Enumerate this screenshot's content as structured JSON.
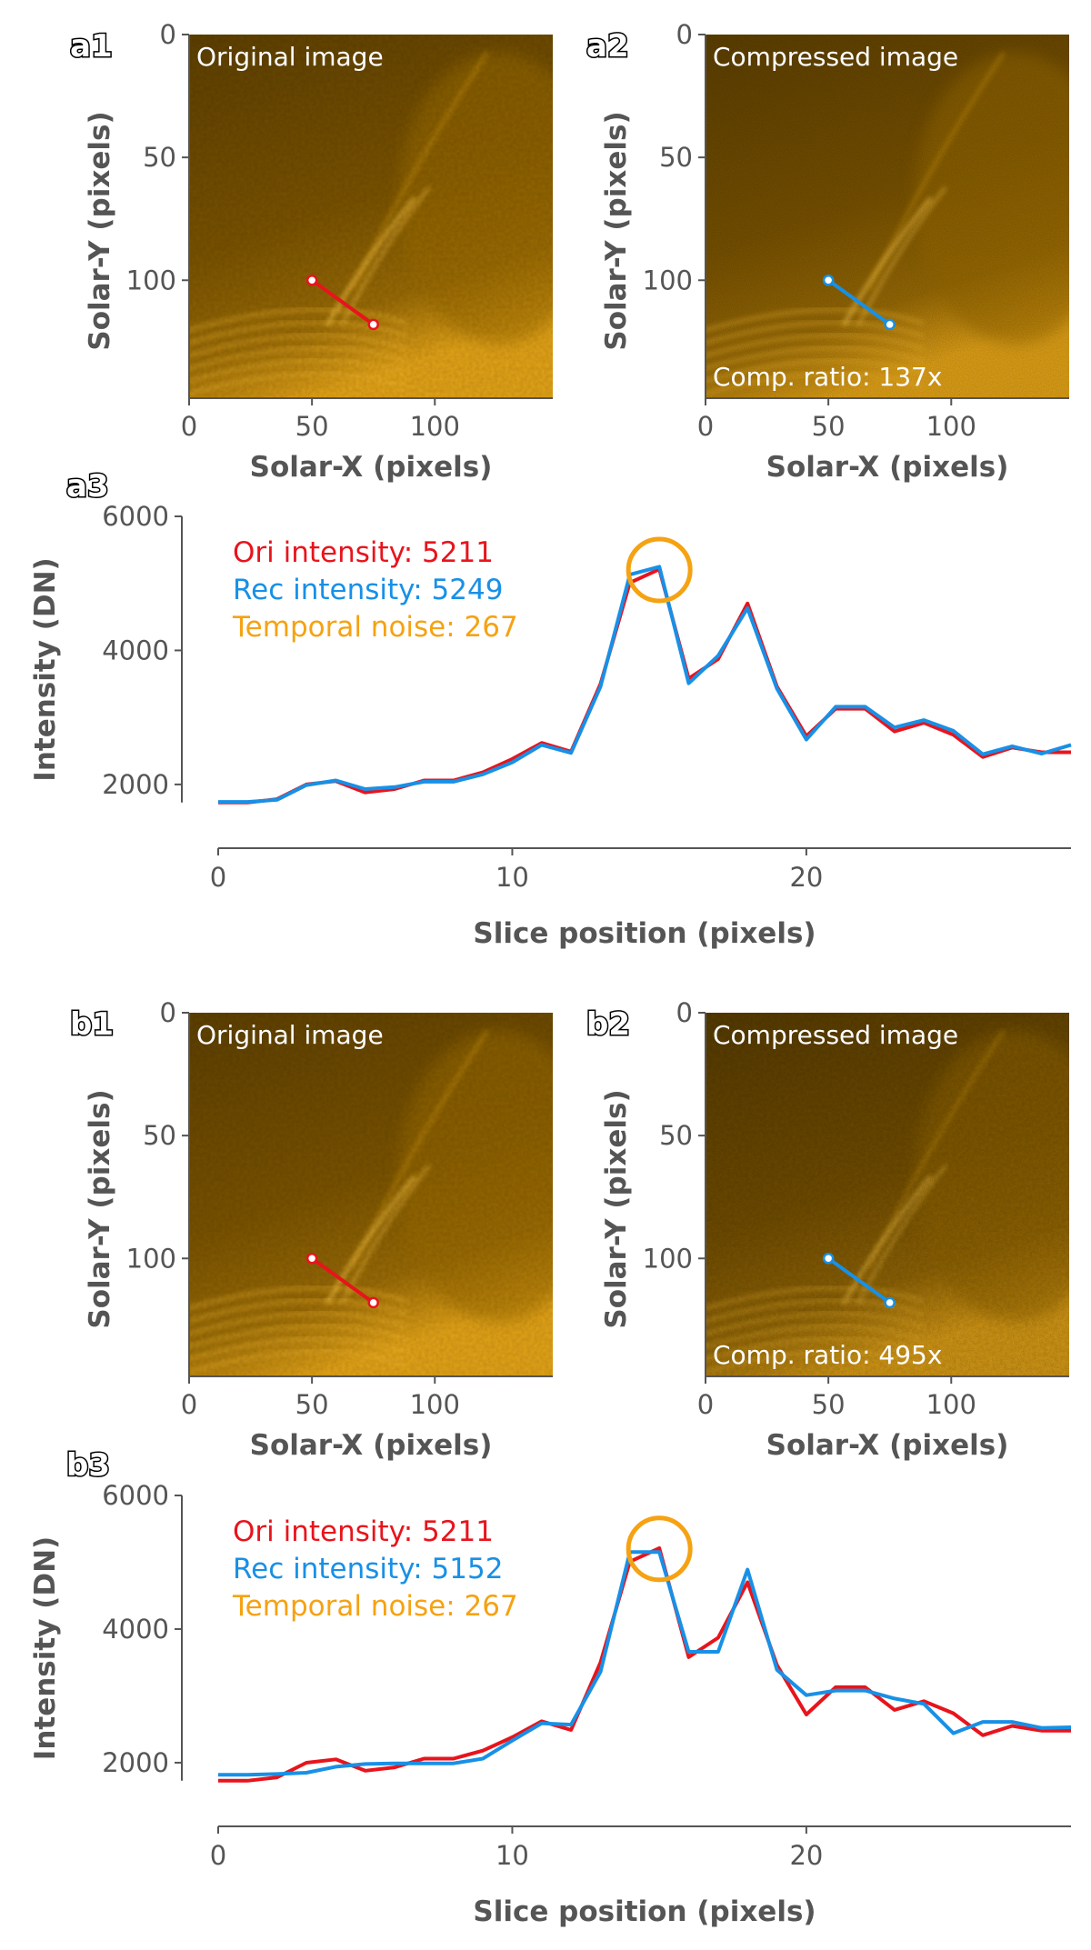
{
  "colors": {
    "original": "#e8141c",
    "reconstructed": "#1890e6",
    "noise": "#f5a213",
    "axis": "#555555",
    "solar_dark": "#5e4000",
    "solar_mid": "#9a6b05",
    "solar_bright": "#e3a317"
  },
  "panels": [
    {
      "row_id": "a",
      "original_image": {
        "tag": "a1",
        "title": "Original image",
        "xlabel": "Solar-X (pixels)",
        "ylabel": "Solar-Y (pixels)",
        "xticks": [
          "0",
          "50",
          "100"
        ],
        "yticks": [
          "0",
          "50",
          "100"
        ],
        "slice_start": [
          50,
          100
        ],
        "slice_end": [
          75,
          118
        ]
      },
      "compressed_image": {
        "tag": "a2",
        "title": "Compressed image",
        "ratio_label": "Comp. ratio: 137x",
        "xlabel": "Solar-X (pixels)",
        "ylabel": "Solar-Y (pixels)",
        "xticks": [
          "0",
          "50",
          "100"
        ],
        "yticks": [
          "0",
          "50",
          "100"
        ],
        "slice_start": [
          50,
          100
        ],
        "slice_end": [
          75,
          118
        ]
      },
      "profile": {
        "tag": "a3",
        "xlabel": "Slice position (pixels)",
        "ylabel": "Intensity (DN)",
        "xticks": [
          "0",
          "10",
          "20"
        ],
        "yticks": [
          "2000",
          "4000",
          "6000"
        ],
        "legend": [
          "Ori intensity: 5211",
          "Rec intensity: 5249",
          "Temporal noise: 267"
        ],
        "highlight": {
          "x": 15,
          "y": 5200
        }
      }
    },
    {
      "row_id": "b",
      "original_image": {
        "tag": "b1",
        "title": "Original image",
        "xlabel": "Solar-X (pixels)",
        "ylabel": "Solar-Y (pixels)",
        "xticks": [
          "0",
          "50",
          "100"
        ],
        "yticks": [
          "0",
          "50",
          "100"
        ],
        "slice_start": [
          50,
          100
        ],
        "slice_end": [
          75,
          118
        ]
      },
      "compressed_image": {
        "tag": "b2",
        "title": "Compressed image",
        "ratio_label": "Comp. ratio: 495x",
        "xlabel": "Solar-X (pixels)",
        "ylabel": "Solar-Y (pixels)",
        "xticks": [
          "0",
          "50",
          "100"
        ],
        "yticks": [
          "0",
          "50",
          "100"
        ],
        "slice_start": [
          50,
          100
        ],
        "slice_end": [
          75,
          118
        ]
      },
      "profile": {
        "tag": "b3",
        "xlabel": "Slice position (pixels)",
        "ylabel": "Intensity (DN)",
        "xticks": [
          "0",
          "10",
          "20"
        ],
        "yticks": [
          "2000",
          "4000",
          "6000"
        ],
        "legend": [
          "Ori intensity: 5211",
          "Rec intensity: 5152",
          "Temporal noise: 267"
        ],
        "highlight": {
          "x": 15,
          "y": 5200
        }
      }
    }
  ],
  "chart_data": [
    {
      "type": "line",
      "title": "a3",
      "xlabel": "Slice position (pixels)",
      "ylabel": "Intensity (DN)",
      "xlim": [
        0,
        29
      ],
      "ylim": [
        1700,
        6000
      ],
      "x": [
        0,
        1,
        2,
        3,
        4,
        5,
        6,
        7,
        8,
        9,
        10,
        11,
        12,
        13,
        14,
        15,
        16,
        17,
        18,
        19,
        20,
        21,
        22,
        23,
        24,
        25,
        26,
        27,
        28,
        29
      ],
      "series": [
        {
          "name": "Ori intensity: 5211",
          "values": [
            1730,
            1730,
            1780,
            2000,
            2050,
            1880,
            1930,
            2060,
            2060,
            2180,
            2380,
            2620,
            2490,
            3500,
            5010,
            5211,
            3580,
            3870,
            4700,
            3460,
            2720,
            3130,
            3130,
            2790,
            2920,
            2740,
            2410,
            2550,
            2480,
            2480
          ]
        },
        {
          "name": "Rec intensity: 5249",
          "values": [
            1740,
            1740,
            1770,
            1990,
            2060,
            1930,
            1960,
            2040,
            2040,
            2150,
            2330,
            2590,
            2470,
            3460,
            5130,
            5249,
            3510,
            3920,
            4630,
            3430,
            2670,
            3160,
            3160,
            2850,
            2960,
            2800,
            2450,
            2570,
            2460,
            2590
          ]
        }
      ]
    },
    {
      "type": "line",
      "title": "b3",
      "xlabel": "Slice position (pixels)",
      "ylabel": "Intensity (DN)",
      "xlim": [
        0,
        29
      ],
      "ylim": [
        1700,
        6000
      ],
      "x": [
        0,
        1,
        2,
        3,
        4,
        5,
        6,
        7,
        8,
        9,
        10,
        11,
        12,
        13,
        14,
        15,
        16,
        17,
        18,
        19,
        20,
        21,
        22,
        23,
        24,
        25,
        26,
        27,
        28,
        29
      ],
      "series": [
        {
          "name": "Ori intensity: 5211",
          "values": [
            1730,
            1730,
            1780,
            2000,
            2050,
            1880,
            1930,
            2060,
            2060,
            2180,
            2380,
            2620,
            2490,
            3500,
            5010,
            5211,
            3580,
            3870,
            4700,
            3460,
            2720,
            3130,
            3130,
            2790,
            2920,
            2740,
            2410,
            2550,
            2480,
            2480
          ]
        },
        {
          "name": "Rec intensity: 5152",
          "values": [
            1820,
            1820,
            1830,
            1850,
            1940,
            1980,
            1990,
            1990,
            1990,
            2060,
            2330,
            2590,
            2570,
            3360,
            5152,
            5152,
            3660,
            3660,
            4890,
            3390,
            3010,
            3080,
            3080,
            2960,
            2880,
            2440,
            2610,
            2610,
            2520,
            2530
          ]
        }
      ]
    }
  ]
}
